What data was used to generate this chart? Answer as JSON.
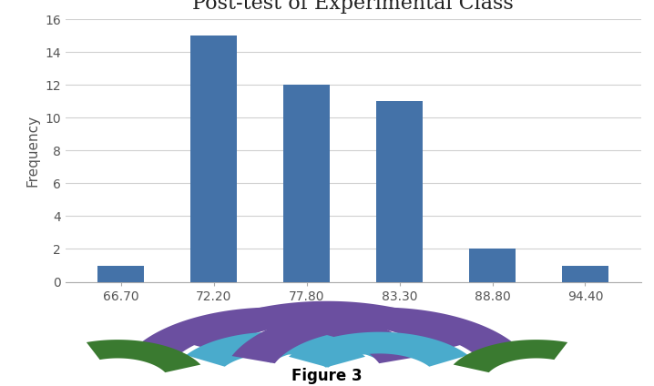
{
  "title": "Post-test of Experimental Class",
  "xlabel": "",
  "ylabel": "Frequency",
  "categories": [
    "66.70",
    "72.20",
    "77.80",
    "83.30",
    "88.80",
    "94.40"
  ],
  "values": [
    1,
    15,
    12,
    11,
    2,
    1
  ],
  "bar_color": "#4472a8",
  "ylim": [
    0,
    16
  ],
  "yticks": [
    0,
    2,
    4,
    6,
    8,
    10,
    12,
    14,
    16
  ],
  "title_fontsize": 16,
  "axis_label_fontsize": 11,
  "tick_fontsize": 10,
  "background_color": "#ffffff",
  "grid_color": "#d0d0d0",
  "figure_caption": "Figure 3",
  "caption_fontsize": 12,
  "purple_color": "#6B4FA0",
  "blue_color": "#4AABCC",
  "green_color": "#3A7A30"
}
